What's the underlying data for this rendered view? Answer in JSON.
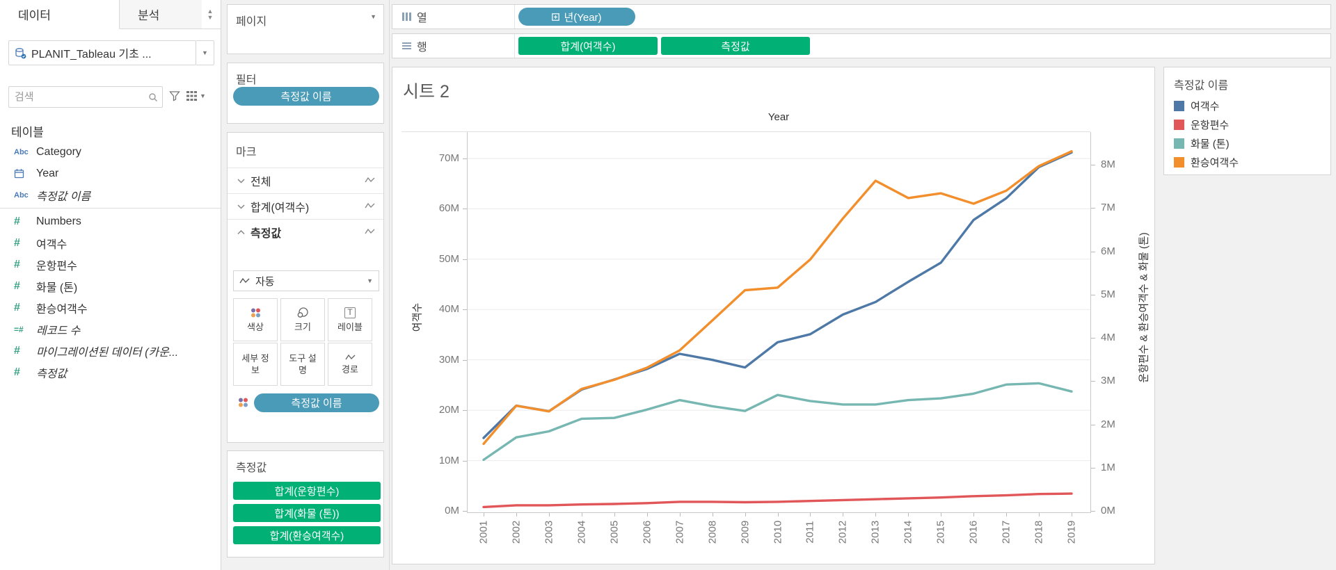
{
  "left_panel": {
    "tab_data": "데이터",
    "tab_analytics": "분석",
    "datasource_label": "PLANIT_Tableau 기초 ...",
    "search_placeholder": "검색",
    "tables_header": "테이블",
    "fields": [
      {
        "label": "Category",
        "icon": "abc",
        "italic": false
      },
      {
        "label": "Year",
        "icon": "calendar",
        "italic": false
      },
      {
        "label": "측정값 이름",
        "icon": "abc",
        "italic": true
      },
      {
        "label": "Numbers",
        "icon": "hash",
        "italic": false
      },
      {
        "label": "여객수",
        "icon": "hash",
        "italic": false
      },
      {
        "label": "운항편수",
        "icon": "hash",
        "italic": false
      },
      {
        "label": "화물 (톤)",
        "icon": "hash",
        "italic": false
      },
      {
        "label": "환승여객수",
        "icon": "hash",
        "italic": false
      },
      {
        "label": "레코드 수",
        "icon": "hash-eq",
        "italic": true
      },
      {
        "label": "마이그레이션된 데이터 (카운...",
        "icon": "hash",
        "italic": true
      },
      {
        "label": "측정값",
        "icon": "hash",
        "italic": true
      }
    ]
  },
  "cards": {
    "pages_title": "페이지",
    "filters_title": "필터",
    "filter_pill": "측정값 이름",
    "marks_title": "마크",
    "marks_rows": [
      {
        "label": "전체",
        "chevron": "down",
        "bold": false
      },
      {
        "label": "합계(여객수)",
        "chevron": "down",
        "bold": false
      },
      {
        "label": "측정값",
        "chevron": "up",
        "bold": true
      }
    ],
    "mark_type": "자동",
    "buttons": {
      "color": "색상",
      "size": "크기",
      "label": "레이블",
      "detail": "세부 정보",
      "tooltip": "도구 설명",
      "path": "경로"
    },
    "color_legend_pill": "측정값 이름",
    "measure_values_title": "측정값",
    "measure_values_pills": [
      "합계(운항편수)",
      "합계(화물 (톤))",
      "합계(환승여객수)"
    ]
  },
  "shelves": {
    "columns_label": "열",
    "columns_pills": [
      {
        "label": "년(Year)",
        "color": "blue"
      }
    ],
    "rows_label": "행",
    "rows_pills": [
      {
        "label": "합계(여객수)",
        "color": "green"
      },
      {
        "label": "측정값",
        "color": "green"
      }
    ]
  },
  "sheet_title": "시트 2",
  "legend": {
    "title": "측정값 이름",
    "items": [
      {
        "label": "여객수",
        "color": "#4e79a7"
      },
      {
        "label": "운항편수",
        "color": "#e15759"
      },
      {
        "label": "화물 (톤)",
        "color": "#76b7b2"
      },
      {
        "label": "환승여객수",
        "color": "#f28e2b"
      }
    ]
  },
  "chart_data": {
    "type": "line",
    "x_title": "Year",
    "x": [
      2001,
      2002,
      2003,
      2004,
      2005,
      2006,
      2007,
      2008,
      2009,
      2010,
      2011,
      2012,
      2013,
      2014,
      2015,
      2016,
      2017,
      2018,
      2019
    ],
    "series": [
      {
        "name": "여객수",
        "axis": "left",
        "color": "#4e79a7",
        "values": [
          14.5,
          20.9,
          19.8,
          24.1,
          26.1,
          28.2,
          31.2,
          30.0,
          28.5,
          33.5,
          35.1,
          39.0,
          41.5,
          45.5,
          49.3,
          57.8,
          62.1,
          68.3,
          71.2
        ]
      },
      {
        "name": "운항편수",
        "axis": "right",
        "color": "#e15759",
        "values": [
          0.09,
          0.13,
          0.13,
          0.15,
          0.16,
          0.18,
          0.21,
          0.21,
          0.2,
          0.21,
          0.23,
          0.25,
          0.27,
          0.29,
          0.31,
          0.34,
          0.36,
          0.39,
          0.4
        ]
      },
      {
        "name": "화물 (톤)",
        "axis": "right",
        "color": "#76b7b2",
        "values": [
          1.18,
          1.7,
          1.84,
          2.13,
          2.15,
          2.34,
          2.56,
          2.42,
          2.31,
          2.68,
          2.54,
          2.46,
          2.46,
          2.56,
          2.6,
          2.71,
          2.92,
          2.95,
          2.76
        ]
      },
      {
        "name": "환승여객수",
        "axis": "right",
        "color": "#f28e2b",
        "values": [
          1.55,
          2.43,
          2.3,
          2.82,
          3.03,
          3.31,
          3.71,
          4.4,
          5.1,
          5.16,
          5.81,
          6.76,
          7.63,
          7.23,
          7.34,
          7.1,
          7.4,
          7.97,
          8.31
        ]
      }
    ],
    "left_axis": {
      "title": "여객수",
      "min": 0,
      "max": 70,
      "tick_step": 10,
      "unit": "M",
      "ticks": [
        "0M",
        "10M",
        "20M",
        "30M",
        "40M",
        "50M",
        "60M",
        "70M"
      ]
    },
    "right_axis": {
      "title": "운항편수 & 환승여객수 & 화물 (톤)",
      "min": 0,
      "max": 8,
      "tick_step": 1,
      "unit": "M",
      "ticks": [
        "0M",
        "1M",
        "2M",
        "3M",
        "4M",
        "5M",
        "6M",
        "7M",
        "8M"
      ]
    },
    "grid": true,
    "legend_position": "top-right"
  }
}
